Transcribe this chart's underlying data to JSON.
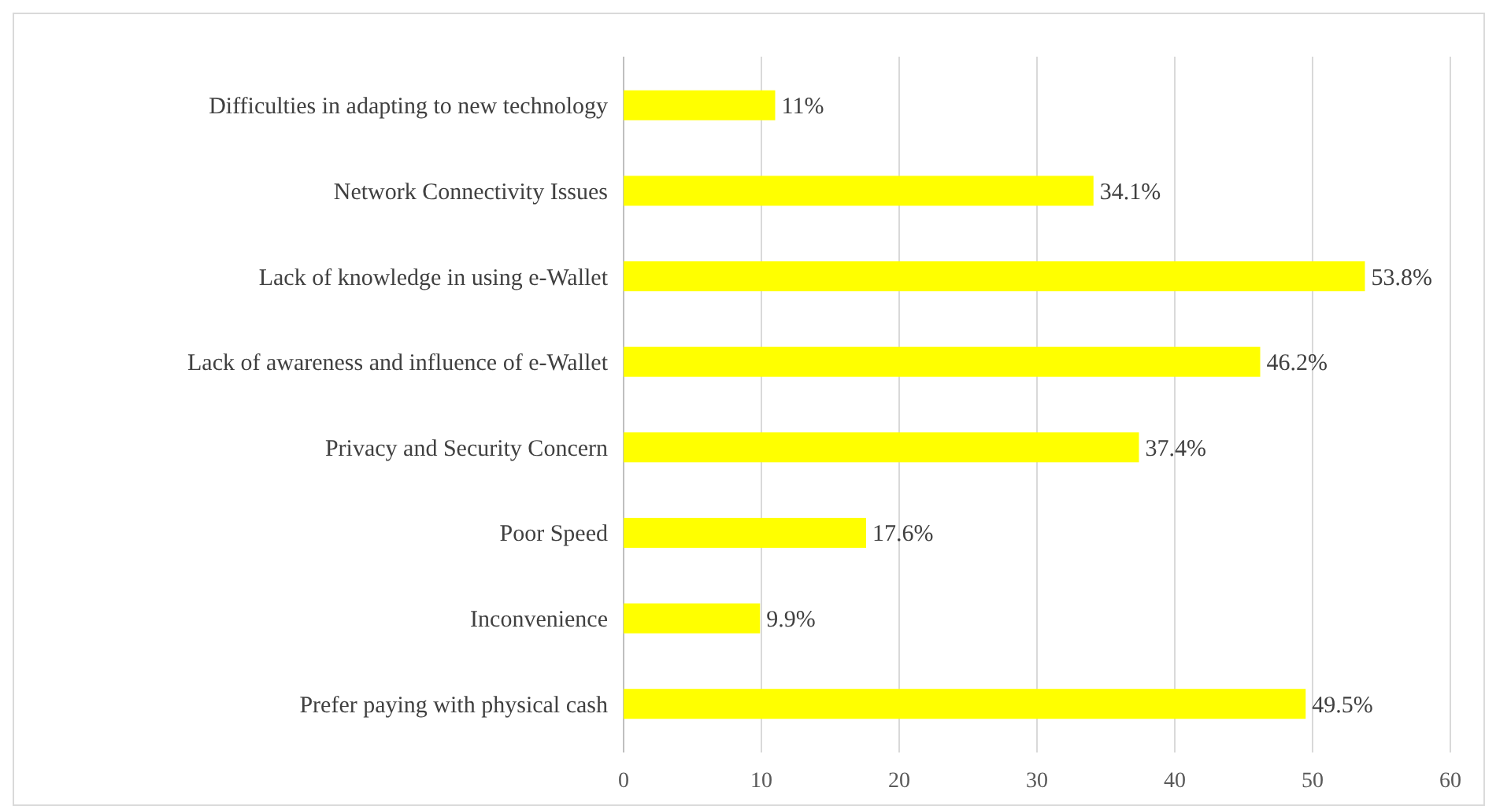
{
  "chart_data": {
    "type": "bar",
    "orientation": "horizontal",
    "categories": [
      "Difficulties in adapting to new technology",
      "Network Connectivity Issues",
      "Lack of knowledge in using e-Wallet",
      "Lack of awareness and influence of e-Wallet",
      "Privacy and Security Concern",
      "Poor Speed",
      "Inconvenience",
      "Prefer paying with physical cash"
    ],
    "values": [
      11,
      34.1,
      53.8,
      46.2,
      37.4,
      17.6,
      9.9,
      49.5
    ],
    "value_labels": [
      "11%",
      "34.1%",
      "53.8%",
      "46.2%",
      "37.4%",
      "17.6%",
      "9.9%",
      "49.5%"
    ],
    "color": "#ffff00",
    "xlim": [
      0,
      60
    ],
    "xticks": [
      0,
      10,
      20,
      30,
      40,
      50,
      60
    ],
    "grid": "x"
  }
}
